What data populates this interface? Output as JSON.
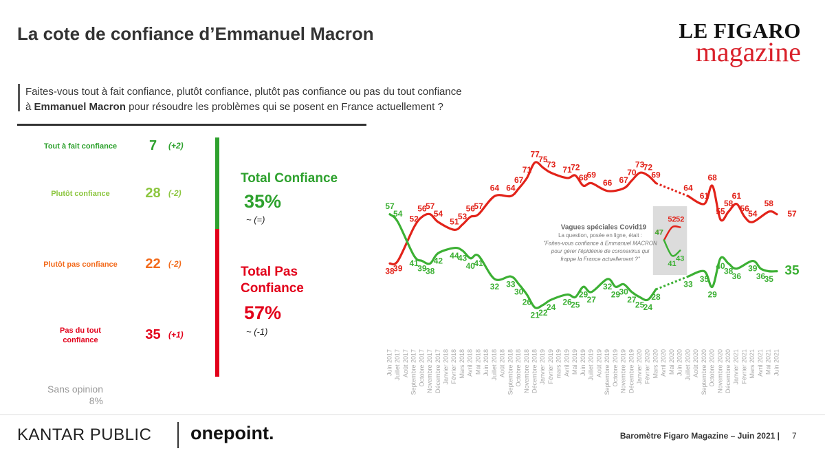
{
  "title": "La cote de confiance d’Emmanuel Macron",
  "logo": {
    "line1": "LE FIGARO",
    "line2": "magazine"
  },
  "question": {
    "line1": "Faites-vous tout à fait confiance, plutôt confiance, plutôt pas confiance ou pas du tout confiance",
    "prefix": "à",
    "name": "Emmanuel Macron",
    "rest": "pour résoudre les problèmes qui se posent en France actuellement ?"
  },
  "breakdown": [
    {
      "label": "Tout à fait confiance",
      "value": 7,
      "change": "(+2)",
      "color": "#2ea12e"
    },
    {
      "label": "Plutôt confiance",
      "value": 28,
      "change": "(-2)",
      "color": "#8cc63f"
    },
    {
      "label": "Plutôt pas confiance",
      "value": 22,
      "change": "(-2)",
      "color": "#f26a1b"
    },
    {
      "label": "Pas du tout confiance",
      "value": 35,
      "change": "(+1)",
      "color": "#e2001a"
    }
  ],
  "sans_opinion": {
    "label": "Sans opinion",
    "value": "8%"
  },
  "totals": [
    {
      "label": "Total Confiance",
      "value": "35%",
      "change": "~ (=)",
      "color": "#2ea12e"
    },
    {
      "label": "Total Pas Confiance",
      "value": "57%",
      "change": "~ (-1)",
      "color": "#e2001a"
    }
  ],
  "chart_data": {
    "type": "line",
    "categories": [
      "Juin 2017",
      "Juillet 2017",
      "Août 2017",
      "Septembre 2017",
      "Octobre 2017",
      "Novembre 2017",
      "Décembre 2017",
      "Janvier 2018",
      "Février 2018",
      "Mars 2018",
      "Avril 2018",
      "Mai 2018",
      "Juin 2018",
      "Juillet 2018",
      "Août 2018",
      "Septembre 2018",
      "Octobre 2018",
      "Novembre 2018",
      "Décembre 2018",
      "Janvier 2019",
      "Février 2019",
      "mars 2019",
      "Avril 2019",
      "Mai 2019",
      "Juin 2019",
      "Juillet 2019",
      "Août 2019",
      "Septembre 2019",
      "Octobre 2019",
      "Novembre 2019",
      "Décembre 2019",
      "Janvier 2020",
      "Février 2020",
      "Mars 2020",
      "Avril 2020",
      "Mai 2020",
      "Juin 2020",
      "Juillet 2020",
      "Août 2020",
      "Septembre 2020",
      "Octobre 2020",
      "Novembre 2020",
      "Décembre 2020",
      "Janvier 2021",
      "Février 2021",
      "Mars 2021",
      "Avril 2021",
      "Mai 2021",
      "Juin 2021"
    ],
    "ylim": [
      15,
      80
    ],
    "series": [
      {
        "color": "#e2231a",
        "x": [
          "Juin 2017",
          "Juillet 2017",
          "Septembre 2017",
          "Octobre 2017",
          "Novembre 2017",
          "Décembre 2017",
          "Février 2018",
          "Mars 2018",
          "Avril 2018",
          "Mai 2018",
          "Juillet 2018",
          "Septembre 2018",
          "Octobre 2018",
          "Novembre 2018",
          "Décembre 2018",
          "Janvier 2019",
          "Février 2019",
          "Avril 2019",
          "Mai 2019",
          "Juin 2019",
          "Juillet 2019",
          "Septembre 2019",
          "Novembre 2019",
          "Décembre 2019",
          "Janvier 2020",
          "Février 2020",
          "Mars 2020"
        ],
        "values": [
          38,
          39,
          52,
          56,
          57,
          54,
          51,
          53,
          56,
          57,
          64,
          64,
          67,
          71,
          77,
          75,
          73,
          71,
          72,
          68,
          69,
          66,
          67,
          70,
          73,
          72,
          69
        ]
      },
      {
        "color": "#3cb034",
        "x": [
          "Juin 2017",
          "Juillet 2017",
          "Septembre 2017",
          "Octobre 2017",
          "Novembre 2017",
          "Décembre 2017",
          "Février 2018",
          "Mars 2018",
          "Avril 2018",
          "Mai 2018",
          "Juillet 2018",
          "Septembre 2018",
          "Octobre 2018",
          "Novembre 2018",
          "Décembre 2018",
          "Janvier 2019",
          "Février 2019",
          "Avril 2019",
          "Mai 2019",
          "Juin 2019",
          "Juillet 2019",
          "Septembre 2019",
          "Octobre 2019",
          "Novembre 2019",
          "Décembre 2019",
          "Janvier 2020",
          "Février 2020",
          "Mars 2020"
        ],
        "values": [
          57,
          54,
          41,
          39,
          38,
          42,
          44,
          43,
          40,
          41,
          32,
          33,
          30,
          26,
          21,
          22,
          24,
          26,
          25,
          29,
          27,
          32,
          29,
          30,
          27,
          25,
          24,
          28
        ]
      },
      {
        "color": "#e2231a",
        "x": [
          "Avril 2020",
          "Mai 2020",
          "Juin 2020"
        ],
        "values": [
          47,
          52,
          52
        ]
      },
      {
        "color": "#3cb034",
        "x": [
          "Avril 2020",
          "Mai 2020",
          "Juin 2020"
        ],
        "values": [
          47,
          41,
          43
        ]
      },
      {
        "color": "#e2231a",
        "x": [
          "Juillet 2020",
          "Septembre 2020",
          "Octobre 2020",
          "Novembre 2020",
          "Décembre 2020",
          "Janvier 2021",
          "Février 2021",
          "Mars 2021",
          "Mai 2021",
          "Juin 2021"
        ],
        "values": [
          64,
          61,
          68,
          55,
          58,
          61,
          56,
          54,
          58,
          57
        ]
      },
      {
        "color": "#3cb034",
        "x": [
          "Juillet 2020",
          "Septembre 2020",
          "Octobre 2020",
          "Novembre 2020",
          "Décembre 2020",
          "Janvier 2021",
          "Mars 2021",
          "Avril 2021",
          "Mai 2021",
          "Juin 2021"
        ],
        "values": [
          33,
          35,
          29,
          40,
          38,
          36,
          39,
          36,
          35,
          35
        ]
      }
    ],
    "annotation": {
      "title": "Vagues spéciales Covid19",
      "lines": [
        "La question, posée en ligne, était :",
        "\"Faites-vous confiance à Emmanuel MACRON",
        "pour gérer l'épidémie de coronavirus qui",
        "frappe la France actuellement ?\""
      ]
    }
  },
  "footer": {
    "brand1": "KANTAR PUBLIC",
    "brand2": "onepoint.",
    "source": "Baromètre Figaro Magazine – Juin 2021 |",
    "page": "7"
  }
}
